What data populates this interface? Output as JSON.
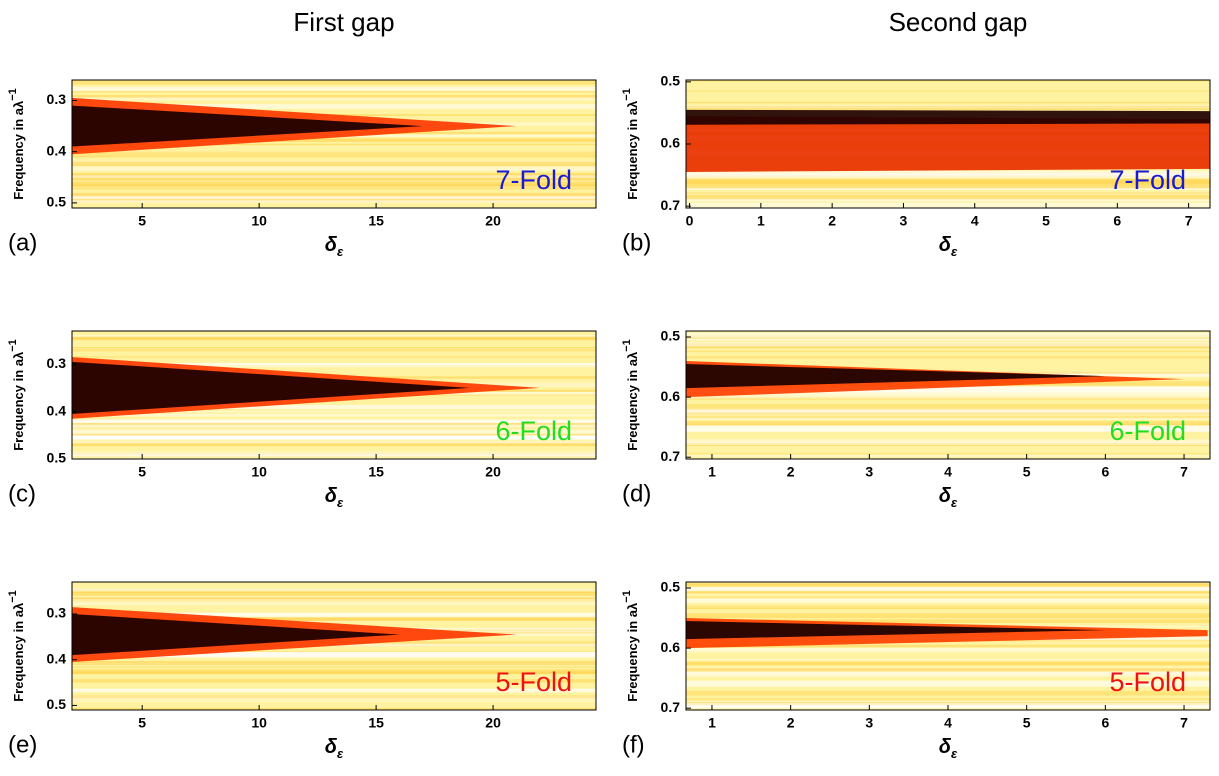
{
  "chart_data": [
    {
      "type": "heatmap",
      "title": "First gap",
      "panel_label": "(a)",
      "annotation": "7-Fold",
      "annotation_color": "#1a1ad0",
      "ylabel": "Frequency in aλ",
      "ylabel_sup": "−1",
      "xlabel": "δ",
      "xlabel_sub": "ε",
      "xlim": [
        2,
        24.4
      ],
      "xticks": [
        5,
        10,
        15,
        20
      ],
      "ylim": [
        0.26,
        0.51
      ],
      "yticks": [
        0.3,
        0.4,
        0.5
      ],
      "y_inverted": true,
      "background": "#fff2a0",
      "bands": [
        {
          "y": 0.35,
          "half_width": 0.055,
          "half_width_end": 0,
          "x_end": 21,
          "color": "#ff3a00"
        },
        {
          "y": 0.35,
          "half_width": 0.04,
          "half_width_end": 0,
          "x_end": 17,
          "color": "#1a0000"
        }
      ]
    },
    {
      "type": "heatmap",
      "title": "Second gap",
      "panel_label": "(b)",
      "annotation": "7-Fold",
      "annotation_color": "#1a1ad0",
      "ylabel": "Frequency in aλ",
      "ylabel_sup": "−1",
      "xlabel": "δ",
      "xlabel_sub": "ε",
      "xlim": [
        -0.05,
        7.3
      ],
      "xticks": [
        0,
        1,
        2,
        3,
        4,
        5,
        6,
        7
      ],
      "ylim": [
        0.497,
        0.703
      ],
      "yticks": [
        0.5,
        0.6,
        0.7
      ],
      "y_inverted": true,
      "background": "#fff2a0",
      "bands": [
        {
          "y": 0.6,
          "half_width": 0.045,
          "half_width_end": 0.04,
          "x_end": 7.3,
          "color": "#e83000"
        },
        {
          "y": 0.557,
          "half_width": 0.012,
          "half_width_end": 0.01,
          "x_end": 7.3,
          "color": "#200000"
        }
      ]
    },
    {
      "type": "heatmap",
      "panel_label": "(c)",
      "annotation": "6-Fold",
      "annotation_color": "#22dd22",
      "ylabel": "Frequency in aλ",
      "ylabel_sup": "−1",
      "xlabel": "δ",
      "xlabel_sub": "ε",
      "xlim": [
        2,
        24.4
      ],
      "xticks": [
        5,
        10,
        15,
        20
      ],
      "ylim": [
        0.23,
        0.5
      ],
      "yticks": [
        0.3,
        0.4,
        0.5
      ],
      "y_inverted": true,
      "background": "#fff2a0",
      "bands": [
        {
          "y": 0.35,
          "half_width": 0.065,
          "half_width_end": 0,
          "x_end": 22,
          "color": "#ff3a00"
        },
        {
          "y": 0.35,
          "half_width": 0.055,
          "half_width_end": 0,
          "x_end": 19,
          "color": "#1a0000"
        }
      ]
    },
    {
      "type": "heatmap",
      "panel_label": "(d)",
      "annotation": "6-Fold",
      "annotation_color": "#22dd22",
      "ylabel": "Frequency in aλ",
      "ylabel_sup": "−1",
      "xlabel": "δ",
      "xlabel_sub": "ε",
      "xlim": [
        0.67,
        7.33
      ],
      "xticks": [
        1,
        2,
        3,
        4,
        5,
        6,
        7
      ],
      "ylim": [
        0.49,
        0.703
      ],
      "yticks": [
        0.5,
        0.6,
        0.7
      ],
      "y_inverted": true,
      "background": "#fff2a0",
      "bands": [
        {
          "y": 0.57,
          "half_width": 0.03,
          "half_width_end": 0,
          "x_end": 7,
          "color": "#ff4000"
        },
        {
          "y": 0.565,
          "half_width": 0.02,
          "half_width_end": 0,
          "x_end": 6,
          "color": "#1a0000"
        }
      ]
    },
    {
      "type": "heatmap",
      "panel_label": "(e)",
      "annotation": "5-Fold",
      "annotation_color": "#ee1111",
      "ylabel": "Frequency in aλ",
      "ylabel_sup": "−1",
      "xlabel": "δ",
      "xlabel_sub": "ε",
      "xlim": [
        2,
        24.4
      ],
      "xticks": [
        5,
        10,
        15,
        20
      ],
      "ylim": [
        0.23,
        0.51
      ],
      "yticks": [
        0.3,
        0.4,
        0.5
      ],
      "y_inverted": true,
      "background": "#fff2a0",
      "bands": [
        {
          "y": 0.345,
          "half_width": 0.06,
          "half_width_end": 0,
          "x_end": 21,
          "color": "#ff3a00"
        },
        {
          "y": 0.345,
          "half_width": 0.045,
          "half_width_end": 0,
          "x_end": 16,
          "color": "#1a0000"
        }
      ]
    },
    {
      "type": "heatmap",
      "panel_label": "(f)",
      "annotation": "5-Fold",
      "annotation_color": "#ee1111",
      "ylabel": "Frequency in aλ",
      "ylabel_sup": "−1",
      "xlabel": "δ",
      "xlabel_sub": "ε",
      "xlim": [
        0.67,
        7.33
      ],
      "xticks": [
        1,
        2,
        3,
        4,
        5,
        6,
        7
      ],
      "ylim": [
        0.49,
        0.703
      ],
      "yticks": [
        0.5,
        0.6,
        0.7
      ],
      "y_inverted": true,
      "background": "#fff2a0",
      "bands": [
        {
          "y": 0.575,
          "half_width": 0.025,
          "half_width_end": 0.005,
          "x_end": 7.3,
          "color": "#ff4000"
        },
        {
          "y": 0.57,
          "half_width": 0.015,
          "half_width_end": 0,
          "x_end": 6,
          "color": "#1a0000"
        }
      ]
    }
  ]
}
